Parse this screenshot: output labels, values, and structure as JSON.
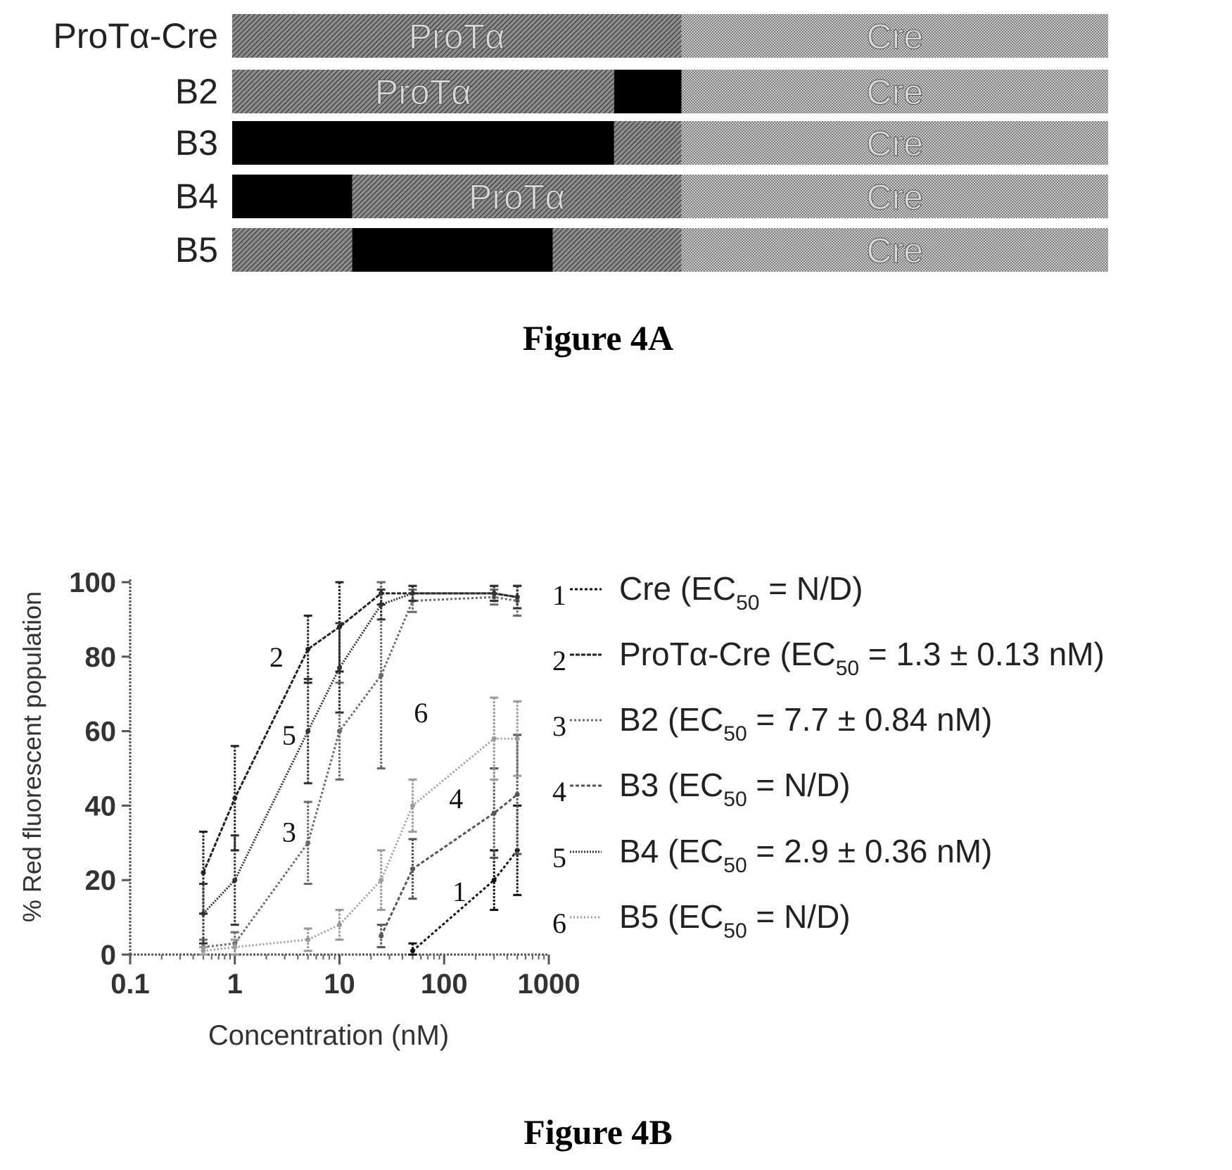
{
  "figure_a": {
    "caption": "Figure 4A",
    "segment_labels": {
      "prota": "ProTα",
      "cre": "Cre"
    },
    "constructs": [
      {
        "name": "ProTα-Cre",
        "segments": [
          {
            "kind": "prota",
            "start": 0,
            "end": 0.513,
            "label": "ProTα"
          },
          {
            "kind": "cre",
            "start": 0.513,
            "end": 1.0,
            "label": "Cre"
          }
        ]
      },
      {
        "name": "B2",
        "segments": [
          {
            "kind": "prota",
            "start": 0,
            "end": 0.436,
            "label": "ProTα"
          },
          {
            "kind": "mut",
            "start": 0.436,
            "end": 0.513,
            "label": ""
          },
          {
            "kind": "cre",
            "start": 0.513,
            "end": 1.0,
            "label": "Cre"
          }
        ]
      },
      {
        "name": "B3",
        "segments": [
          {
            "kind": "mut",
            "start": 0,
            "end": 0.436,
            "label": ""
          },
          {
            "kind": "prota",
            "start": 0.436,
            "end": 0.513,
            "label": ""
          },
          {
            "kind": "cre",
            "start": 0.513,
            "end": 1.0,
            "label": "Cre"
          }
        ]
      },
      {
        "name": "B4",
        "segments": [
          {
            "kind": "mut",
            "start": 0,
            "end": 0.137,
            "label": ""
          },
          {
            "kind": "prota",
            "start": 0.137,
            "end": 0.513,
            "label": "ProTα"
          },
          {
            "kind": "cre",
            "start": 0.513,
            "end": 1.0,
            "label": "Cre"
          }
        ]
      },
      {
        "name": "B5",
        "segments": [
          {
            "kind": "prota",
            "start": 0,
            "end": 0.137,
            "label": ""
          },
          {
            "kind": "mut",
            "start": 0.137,
            "end": 0.366,
            "label": ""
          },
          {
            "kind": "prota",
            "start": 0.366,
            "end": 0.513,
            "label": ""
          },
          {
            "kind": "cre",
            "start": 0.513,
            "end": 1.0,
            "label": "Cre"
          }
        ]
      }
    ]
  },
  "chart_data": {
    "type": "line",
    "caption": "Figure 4B",
    "xlabel": "Concentration (nM)",
    "ylabel": "% Red fluorescent population",
    "xscale": "log",
    "xlim": [
      0.1,
      1000
    ],
    "ylim": [
      0,
      100
    ],
    "xticks": [
      {
        "v": 0.1,
        "label": "0.1"
      },
      {
        "v": 1,
        "label": "1"
      },
      {
        "v": 10,
        "label": "10"
      },
      {
        "v": 100,
        "label": "100"
      },
      {
        "v": 1000,
        "label": "1000"
      }
    ],
    "yticks": [
      {
        "v": 0,
        "label": "0"
      },
      {
        "v": 20,
        "label": "20"
      },
      {
        "v": 40,
        "label": "40"
      },
      {
        "v": 60,
        "label": "60"
      },
      {
        "v": 80,
        "label": "80"
      },
      {
        "v": 100,
        "label": "100"
      }
    ],
    "legend_position": "right",
    "series": [
      {
        "num": "1",
        "name": "Cre (EC50 = N/D)",
        "legend_main": "Cre (EC",
        "legend_sub": "50",
        "legend_tail": " = N/D)",
        "color": "#111111",
        "dash": "4,3",
        "x": [
          50,
          300,
          500
        ],
        "y": [
          1,
          20,
          28
        ],
        "err": [
          2,
          8,
          12
        ],
        "label_at": [
          140,
          17
        ]
      },
      {
        "num": "2",
        "name": "ProTα-Cre (EC50 = 1.3 ± 0.13 nM)",
        "legend_main": "ProTα-Cre (EC",
        "legend_sub": "50",
        "legend_tail": " = 1.3 ± 0.13 nM)",
        "color": "#222222",
        "dash": "6,2",
        "x": [
          0.5,
          1,
          5,
          10,
          25,
          50,
          300,
          500
        ],
        "y": [
          22,
          42,
          82,
          88,
          97,
          97,
          97,
          96
        ],
        "err": [
          11,
          14,
          9,
          12,
          3,
          2,
          2,
          3
        ],
        "label_at": [
          2.5,
          80
        ]
      },
      {
        "num": "3",
        "name": "B2 (EC50 = 7.7 ± 0.84 nM)",
        "legend_main": "B2 (EC",
        "legend_sub": "50",
        "legend_tail": " = 7.7 ± 0.84 nM)",
        "color": "#6a6a6a",
        "dash": "3,3",
        "x": [
          0.5,
          1,
          5,
          10,
          25,
          50,
          300,
          500
        ],
        "y": [
          2,
          3,
          30,
          60,
          75,
          95,
          96,
          95
        ],
        "err": [
          2,
          3,
          11,
          13,
          25,
          3,
          2,
          4
        ],
        "label_at": [
          3.3,
          33
        ]
      },
      {
        "num": "4",
        "name": "B3 (EC50 = N/D)",
        "legend_main": "B3 (EC",
        "legend_sub": "50",
        "legend_tail": " = N/D)",
        "color": "#555555",
        "dash": "5,3",
        "x": [
          25,
          50,
          300,
          500
        ],
        "y": [
          5,
          23,
          38,
          43
        ],
        "err": [
          3,
          8,
          12,
          16
        ],
        "label_at": [
          130,
          42
        ]
      },
      {
        "num": "5",
        "name": "B4 (EC50 = 2.9 ± 0.36 nM)",
        "legend_main": "B4 (EC",
        "legend_sub": "50",
        "legend_tail": " = 2.9 ± 0.36 nM)",
        "color": "#333333",
        "dash": "2,2",
        "x": [
          0.5,
          1,
          5,
          10,
          25,
          50,
          300,
          500
        ],
        "y": [
          11,
          20,
          60,
          77,
          94,
          97,
          97,
          96
        ],
        "err": [
          8,
          12,
          14,
          12,
          4,
          2,
          2,
          3
        ],
        "label_at": [
          3.3,
          59
        ]
      },
      {
        "num": "6",
        "name": "B5 (EC50 = N/D)",
        "legend_main": "B5 (EC",
        "legend_sub": "50",
        "legend_tail": " = N/D)",
        "color": "#9a9a9a",
        "dash": "2,3",
        "x": [
          0.5,
          1,
          5,
          10,
          25,
          50,
          300,
          500
        ],
        "y": [
          1,
          2,
          4,
          8,
          20,
          40,
          58,
          58
        ],
        "err": [
          1,
          2,
          3,
          4,
          8,
          7,
          11,
          10
        ],
        "label_at": [
          60,
          65
        ]
      }
    ]
  }
}
